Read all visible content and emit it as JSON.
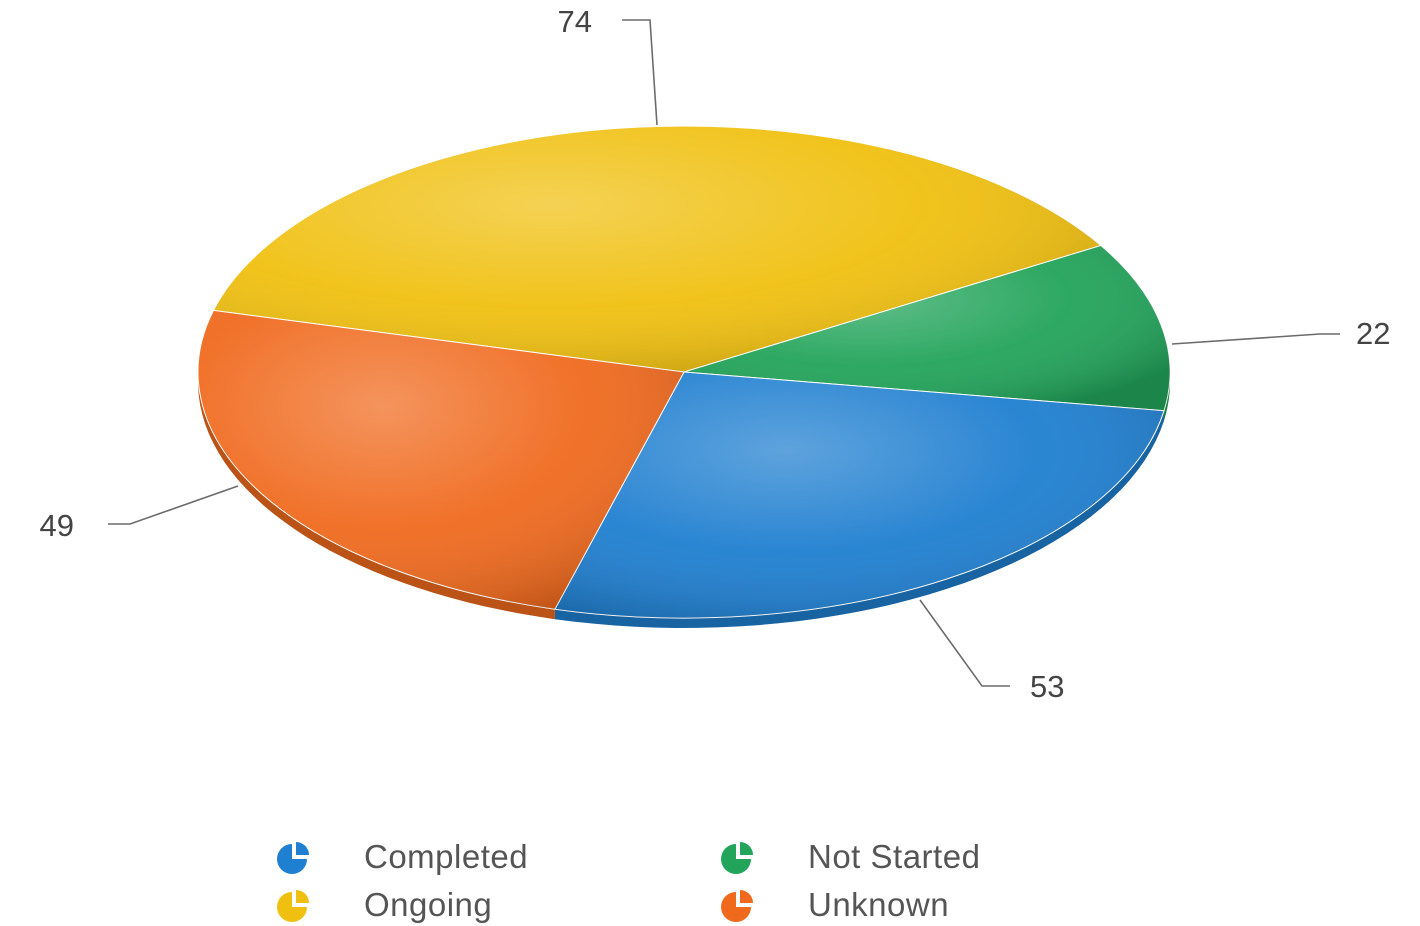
{
  "chart_data": {
    "type": "pie",
    "title": "",
    "categories": [
      "Completed",
      "Not Started",
      "Ongoing",
      "Unknown"
    ],
    "values": [
      53,
      22,
      74,
      49
    ],
    "colors": [
      "#1f7fd0",
      "#22a45a",
      "#f0c010",
      "#f06a1e"
    ],
    "value_labels_shown": true,
    "legend_position": "bottom",
    "legend_icon": "pie-slice-icon"
  }
}
